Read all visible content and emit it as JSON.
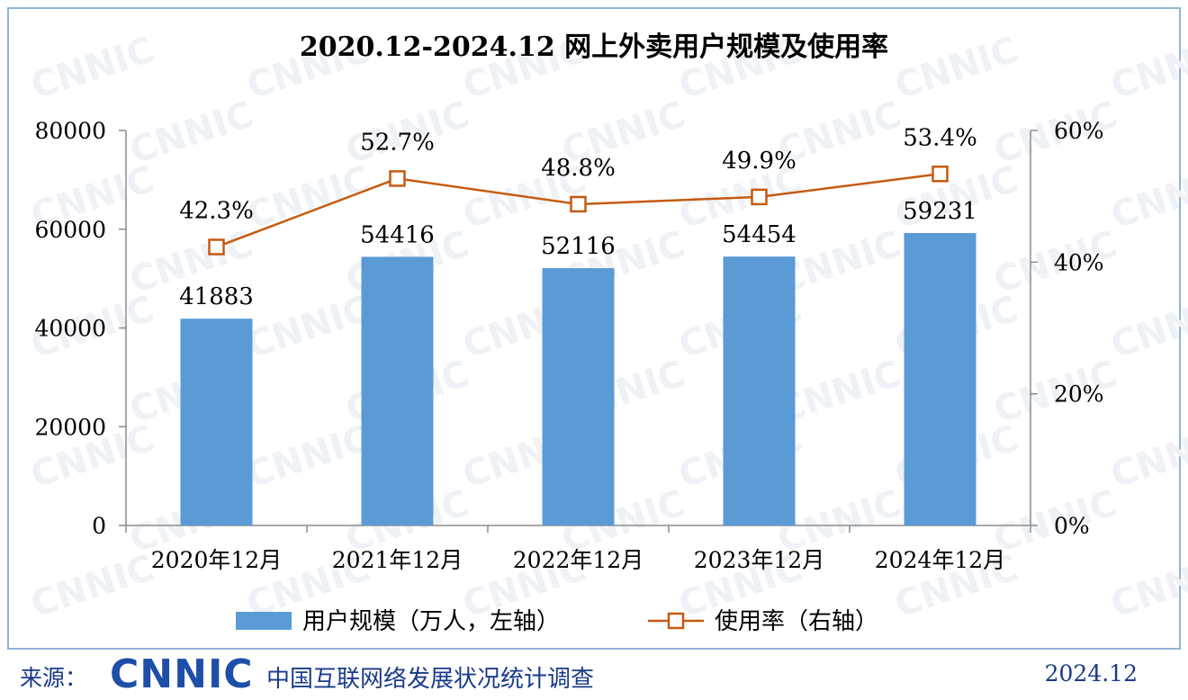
{
  "chart_data": {
    "type": "bar",
    "title": "2020.12-2024.12 网上外卖用户规模及使用率",
    "categories": [
      "2020年12月",
      "2021年12月",
      "2022年12月",
      "2023年12月",
      "2024年12月"
    ],
    "series": [
      {
        "name": "用户规模（万人，左轴）",
        "type": "bar",
        "axis": "left",
        "values": [
          41883,
          54416,
          52116,
          54454,
          59231
        ],
        "labels": [
          "41883",
          "54416",
          "52116",
          "54454",
          "59231"
        ],
        "color": "#5b9bd5"
      },
      {
        "name": "使用率（右轴）",
        "type": "line",
        "axis": "right",
        "values": [
          42.3,
          52.7,
          48.8,
          49.9,
          53.4
        ],
        "labels": [
          "42.3%",
          "52.7%",
          "48.8%",
          "49.9%",
          "53.4%"
        ],
        "color": "#c55a11"
      }
    ],
    "y_left": {
      "range": [
        0,
        80000
      ],
      "ticks": [
        "0",
        "20000",
        "40000",
        "60000",
        "80000"
      ]
    },
    "y_right": {
      "range": [
        0,
        60
      ],
      "ticks": [
        "0%",
        "20%",
        "40%",
        "60%"
      ]
    },
    "grid": false,
    "legend": "bottom"
  },
  "footer": {
    "source_label": "来源：",
    "logo": "CNNIC",
    "organization": "中国互联网络发展状况统计调查",
    "date": "2024.12"
  }
}
